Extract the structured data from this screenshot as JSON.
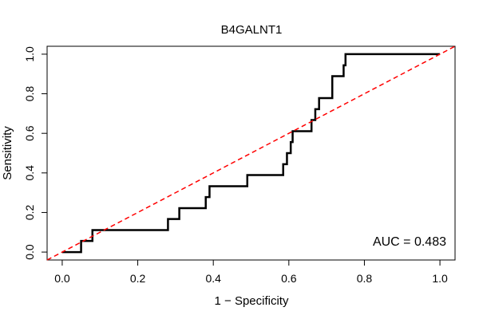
{
  "chart_data": {
    "type": "line",
    "title": "B4GALNT1",
    "xlabel": "1 − Specificity",
    "ylabel": "Sensitivity",
    "xlim": [
      -0.04,
      1.04
    ],
    "ylim": [
      -0.04,
      1.04
    ],
    "x_ticks": [
      0.0,
      0.2,
      0.4,
      0.6,
      0.8,
      1.0
    ],
    "y_ticks": [
      0.0,
      0.2,
      0.4,
      0.6,
      0.8,
      1.0
    ],
    "x_tick_labels": [
      "0.0",
      "0.2",
      "0.4",
      "0.6",
      "0.8",
      "1.0"
    ],
    "y_tick_labels": [
      "0.0",
      "0.2",
      "0.4",
      "0.6",
      "0.8",
      "1.0"
    ],
    "grid": false,
    "annotation": "AUC = 0.483",
    "series": [
      {
        "color": "#000000",
        "style": "solid",
        "step": true,
        "points": [
          [
            0.0,
            0.0
          ],
          [
            0.05,
            0.0
          ],
          [
            0.05,
            0.056
          ],
          [
            0.08,
            0.056
          ],
          [
            0.08,
            0.111
          ],
          [
            0.28,
            0.111
          ],
          [
            0.28,
            0.167
          ],
          [
            0.31,
            0.167
          ],
          [
            0.31,
            0.222
          ],
          [
            0.38,
            0.222
          ],
          [
            0.38,
            0.278
          ],
          [
            0.39,
            0.278
          ],
          [
            0.39,
            0.333
          ],
          [
            0.49,
            0.333
          ],
          [
            0.49,
            0.389
          ],
          [
            0.585,
            0.389
          ],
          [
            0.585,
            0.444
          ],
          [
            0.595,
            0.444
          ],
          [
            0.595,
            0.5
          ],
          [
            0.605,
            0.5
          ],
          [
            0.605,
            0.556
          ],
          [
            0.61,
            0.556
          ],
          [
            0.61,
            0.611
          ],
          [
            0.66,
            0.611
          ],
          [
            0.66,
            0.667
          ],
          [
            0.67,
            0.667
          ],
          [
            0.67,
            0.722
          ],
          [
            0.68,
            0.722
          ],
          [
            0.68,
            0.778
          ],
          [
            0.715,
            0.778
          ],
          [
            0.715,
            0.889
          ],
          [
            0.745,
            0.889
          ],
          [
            0.745,
            0.944
          ],
          [
            0.75,
            0.944
          ],
          [
            0.75,
            1.0
          ],
          [
            1.0,
            1.0
          ]
        ]
      },
      {
        "color": "#ff0000",
        "style": "dashed",
        "points": [
          [
            -0.04,
            -0.04
          ],
          [
            1.04,
            1.04
          ]
        ]
      }
    ]
  }
}
